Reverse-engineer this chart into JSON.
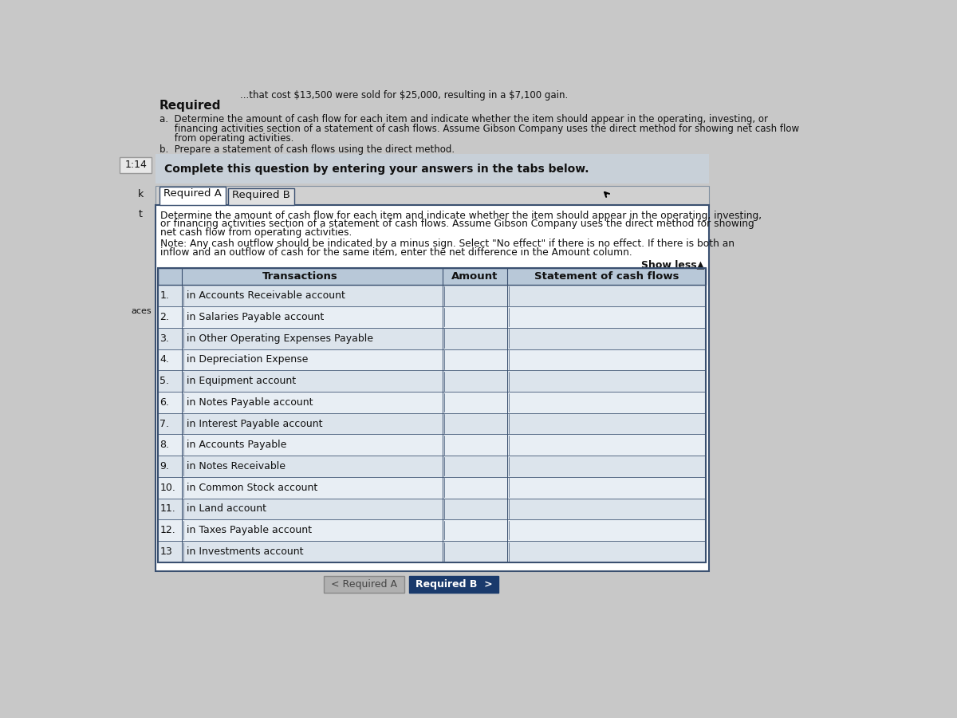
{
  "page_bg": "#c8c8c8",
  "white": "#ffffff",
  "light_gray": "#e8e8e8",
  "medium_gray": "#d0d0d0",
  "tab_bg": "#e0e0e0",
  "header_blue_bg": "#b8c8d8",
  "row_light": "#dce4ec",
  "row_lighter": "#e8eef4",
  "border_dark": "#3a5070",
  "border_med": "#8090a0",
  "button_blue": "#1a3a6c",
  "button_gray": "#b0b0b0",
  "text_dark": "#111111",
  "text_note": "#222222",
  "complete_box_bg": "#c8d0d8",
  "top_text": "...that cost $13,500 were sold for $25,000, resulting in a $7,100 gain.",
  "required_label": "Required",
  "item_a1": "a.  Determine the amount of cash flow for each item and indicate whether the item should appear in the operating, investing, or",
  "item_a2": "     financing activities section of a statement of cash flows. Assume Gibson Company uses the direct method for showing net cash flow",
  "item_a3": "     from operating activities.",
  "item_b": "b.  Prepare a statement of cash flows using the direct method.",
  "complete_text": "Complete this question by entering your answers in the tabs below.",
  "tab1": "Required A",
  "tab2": "Required B",
  "desc_line1": "Determine the amount of cash flow for each item and indicate whether the item should appear in the operating, investing,",
  "desc_line2": "or financing activities section of a statement of cash flows. Assume Gibson Company uses the direct method for showing",
  "desc_line3": "net cash flow from operating activities.",
  "note_line1": "Note: Any cash outflow should be indicated by a minus sign. Select \"No effect\" if there is no effect. If there is both an",
  "note_line2": "inflow and an outflow of cash for the same item, enter the net difference in the Amount column.",
  "show_less": "Show less▲",
  "col_transactions": "Transactions",
  "col_amount": "Amount",
  "col_statement": "Statement of cash flows",
  "rows": [
    {
      "num": "1.",
      "text": "in Accounts Receivable account"
    },
    {
      "num": "2.",
      "text": "in Salaries Payable account"
    },
    {
      "num": "3.",
      "text": "in Other Operating Expenses Payable"
    },
    {
      "num": "4.",
      "text": "in Depreciation Expense"
    },
    {
      "num": "5.",
      "text": "in Equipment account"
    },
    {
      "num": "6.",
      "text": "in Notes Payable account"
    },
    {
      "num": "7.",
      "text": "in Interest Payable account"
    },
    {
      "num": "8.",
      "text": "in Accounts Payable"
    },
    {
      "num": "9.",
      "text": "in Notes Receivable"
    },
    {
      "num": "10.",
      "text": "in Common Stock account"
    },
    {
      "num": "11.",
      "text": "in Land account"
    },
    {
      "num": "12.",
      "text": "in Taxes Payable account"
    },
    {
      "num": "13",
      "text": "in Investments account"
    }
  ],
  "btn_a_text": "< Required A",
  "btn_b_text": "Required B  >",
  "sidebar_text": "1:14",
  "left_k": "k",
  "left_t": "t",
  "left_aces": "aces"
}
